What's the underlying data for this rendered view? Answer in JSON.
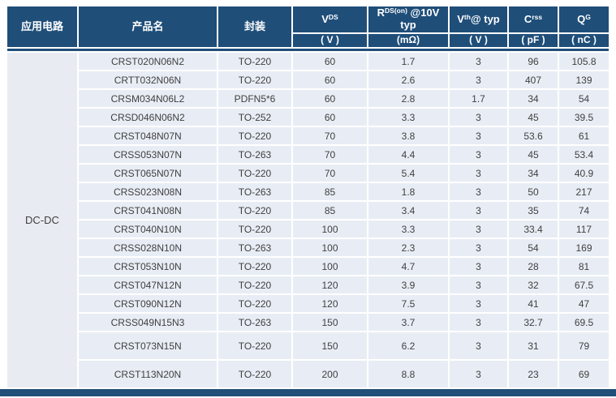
{
  "table": {
    "app_header": "应用电路",
    "product_header": "产品名",
    "package_header": "封装",
    "application": "DC-DC",
    "spec_columns": [
      {
        "base": "V",
        "sup": "DS",
        "rest": "",
        "unit": "( V )"
      },
      {
        "base": "R",
        "sup": "DS(on)",
        "rest": " @10V typ",
        "unit": "(mΩ)"
      },
      {
        "base": "V",
        "sup": "th",
        "rest": "@ typ",
        "unit": "( V )"
      },
      {
        "base": "C",
        "sup": "rss",
        "rest": "",
        "unit": "( pF )"
      },
      {
        "base": "Q",
        "sup": "G",
        "rest": "",
        "unit": "( nC )"
      }
    ],
    "tall_rows": [
      15,
      16
    ],
    "rows": [
      [
        "CRST020N06N2",
        "TO-220",
        "60",
        "1.7",
        "3",
        "96",
        "105.8"
      ],
      [
        "CRTT032N06N",
        "TO-220",
        "60",
        "2.6",
        "3",
        "407",
        "139"
      ],
      [
        "CRSM034N06L2",
        "PDFN5*6",
        "60",
        "2.8",
        "1.7",
        "34",
        "54"
      ],
      [
        "CRSD046N06N2",
        "TO-252",
        "60",
        "3.3",
        "3",
        "45",
        "39.5"
      ],
      [
        "CRST048N07N",
        "TO-220",
        "70",
        "3.8",
        "3",
        "53.6",
        "61"
      ],
      [
        "CRSS053N07N",
        "TO-263",
        "70",
        "4.4",
        "3",
        "45",
        "53.4"
      ],
      [
        "CRST065N07N",
        "TO-220",
        "70",
        "5.4",
        "3",
        "34",
        "40.9"
      ],
      [
        "CRSS023N08N",
        "TO-263",
        "85",
        "1.8",
        "3",
        "50",
        "217"
      ],
      [
        "CRST041N08N",
        "TO-220",
        "85",
        "3.4",
        "3",
        "35",
        "74"
      ],
      [
        "CRST040N10N",
        "TO-220",
        "100",
        "3.3",
        "3",
        "33.4",
        "117"
      ],
      [
        "CRSS028N10N",
        "TO-263",
        "100",
        "2.3",
        "3",
        "54",
        "169"
      ],
      [
        "CRST053N10N",
        "TO-220",
        "100",
        "4.7",
        "3",
        "28",
        "81"
      ],
      [
        "CRST047N12N",
        "TO-220",
        "120",
        "3.9",
        "3",
        "32",
        "67.5"
      ],
      [
        "CRST090N12N",
        "TO-220",
        "120",
        "7.5",
        "3",
        "41",
        "47"
      ],
      [
        "CRSS049N15N3",
        "TO-263",
        "150",
        "3.7",
        "3",
        "32.7",
        "69.5"
      ],
      [
        "CRST073N15N",
        "TO-220",
        "150",
        "6.2",
        "3",
        "31",
        "79"
      ],
      [
        "CRST113N20N",
        "TO-220",
        "200",
        "8.8",
        "3",
        "23",
        "69"
      ]
    ]
  },
  "colors": {
    "header_bg": "#1F4E79",
    "header_text": "#FFFFFF",
    "row_bg": "#E8EDF5",
    "app_cell_bg": "#E8EBF2",
    "body_text": "#3F3F3F",
    "gridline": "#FFFFFF",
    "bottom_bar": "#1F4E79"
  }
}
